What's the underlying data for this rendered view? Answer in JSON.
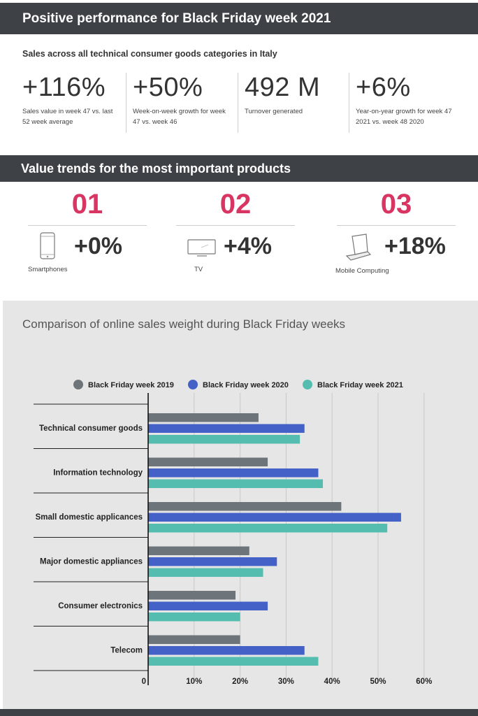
{
  "header": {
    "title": "Positive performance for Black Friday week 2021",
    "subtitle": "Sales across all technical consumer goods categories in Italy"
  },
  "kpis": [
    {
      "value": "+116%",
      "desc": "Sales value in week 47 vs. last 52 week average"
    },
    {
      "value": "+50%",
      "desc": "Week-on-week growth for week 47 vs. week 46"
    },
    {
      "value": "492 M",
      "desc": "Turnover generated"
    },
    {
      "value": "+6%",
      "desc": "Year-on-year growth for week 47 2021 vs. week 48 2020"
    }
  ],
  "products_section": {
    "title": "Value trends for the most important products",
    "items": [
      {
        "rank": "01",
        "change": "+0%",
        "label": "Smartphones",
        "icon": "smartphone-icon"
      },
      {
        "rank": "02",
        "change": "+4%",
        "label": "TV",
        "icon": "tv-icon"
      },
      {
        "rank": "03",
        "change": "+18%",
        "label": "Mobile Computing",
        "icon": "laptop-icon"
      }
    ]
  },
  "colors": {
    "accent": "#d83563",
    "band": "#3e4246",
    "series_2019": "#6d747a",
    "series_2020": "#4361c7",
    "series_2021": "#55bdb0"
  },
  "chart_data": {
    "type": "bar",
    "orientation": "horizontal",
    "title": "Comparison of online sales weight during Black Friday weeks",
    "categories": [
      "Technical consumer goods",
      "Information technology",
      "Small domestic applicances",
      "Major domestic appliances",
      "Consumer electronics",
      "Telecom"
    ],
    "series": [
      {
        "name": "Black Friday week 2019",
        "color": "#6d747a",
        "values": [
          24,
          26,
          42,
          22,
          19,
          20
        ]
      },
      {
        "name": "Black Friday week 2020",
        "color": "#4361c7",
        "values": [
          34,
          37,
          55,
          28,
          26,
          34
        ]
      },
      {
        "name": "Black Friday week 2021",
        "color": "#55bdb0",
        "values": [
          33,
          38,
          52,
          25,
          20,
          37
        ]
      }
    ],
    "x_ticks": [
      "0",
      "10%",
      "20%",
      "30%",
      "40%",
      "50%",
      "60%"
    ],
    "xlim": [
      0,
      60
    ],
    "grid": true,
    "legend_position": "top"
  }
}
